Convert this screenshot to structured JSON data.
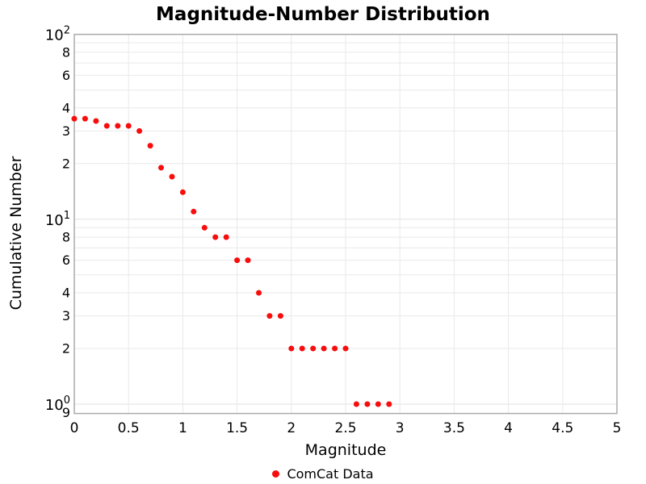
{
  "title": "Magnitude-Number Distribution",
  "axes": {
    "x_title": "Magnitude",
    "y_title": "Cumulative Number"
  },
  "legend": {
    "label": "ComCat Data"
  },
  "colors": {
    "marker": "#f80c0c",
    "grid_minor": "#e9e9e9",
    "grid_major": "#e0e0e0",
    "frame": "#ababab",
    "text": "#000000",
    "background": "#ffffff"
  },
  "chart_data": {
    "type": "scatter",
    "title": "Magnitude-Number Distribution",
    "xlabel": "Magnitude",
    "ylabel": "Cumulative Number",
    "yscale": "log",
    "xlim": [
      0,
      5
    ],
    "ylim": [
      0.89,
      100
    ],
    "grid": true,
    "legend_position": "bottom-center",
    "series": [
      {
        "name": "ComCat Data",
        "color": "#f80c0c",
        "marker": "circle",
        "marker_radius": 3.5,
        "x": [
          0.0,
          0.1,
          0.2,
          0.3,
          0.4,
          0.5,
          0.6,
          0.7,
          0.8,
          0.9,
          1.0,
          1.1,
          1.2,
          1.3,
          1.4,
          1.5,
          1.6,
          1.7,
          1.8,
          1.9,
          2.0,
          2.1,
          2.2,
          2.3,
          2.4,
          2.5,
          2.6,
          2.7,
          2.8,
          2.9
        ],
        "y": [
          35,
          35,
          34,
          32,
          32,
          32,
          30,
          25,
          19,
          17,
          14,
          11,
          9,
          8,
          8,
          6,
          6,
          4,
          3,
          3,
          2,
          2,
          2,
          2,
          2,
          2,
          1,
          1,
          1,
          1
        ]
      }
    ],
    "x_ticks": [
      {
        "v": 0,
        "label": "0"
      },
      {
        "v": 0.5,
        "label": "0.5"
      },
      {
        "v": 1,
        "label": "1"
      },
      {
        "v": 1.5,
        "label": "1.5"
      },
      {
        "v": 2,
        "label": "2"
      },
      {
        "v": 2.5,
        "label": "2.5"
      },
      {
        "v": 3,
        "label": "3"
      },
      {
        "v": 3.5,
        "label": "3.5"
      },
      {
        "v": 4,
        "label": "4"
      },
      {
        "v": 4.5,
        "label": "4.5"
      },
      {
        "v": 5,
        "label": "5"
      }
    ],
    "y_ticks": [
      {
        "v": 100,
        "base": "10",
        "sup": "2"
      },
      {
        "v": 80,
        "label": "8"
      },
      {
        "v": 60,
        "label": "6"
      },
      {
        "v": 40,
        "label": "4"
      },
      {
        "v": 30,
        "label": "3"
      },
      {
        "v": 20,
        "label": "2"
      },
      {
        "v": 10,
        "base": "10",
        "sup": "1"
      },
      {
        "v": 8,
        "label": "8"
      },
      {
        "v": 6,
        "label": "6"
      },
      {
        "v": 4,
        "label": "4"
      },
      {
        "v": 3,
        "label": "3"
      },
      {
        "v": 2,
        "label": "2"
      },
      {
        "v": 1,
        "base": "10",
        "sup": "0"
      },
      {
        "v": 0.9,
        "label": "9"
      }
    ]
  }
}
